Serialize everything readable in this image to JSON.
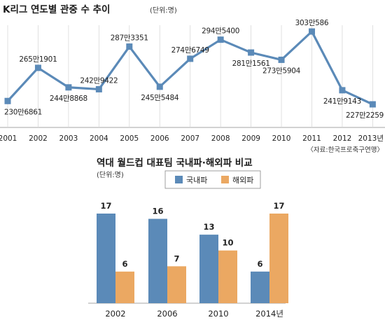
{
  "chart_data": [
    {
      "type": "line",
      "title": "K리그 연도별 관중 수 추이",
      "unit": "(단위:명)",
      "source": "〈자료:한국프로축구연맹〉",
      "x": [
        "2001",
        "2002",
        "2003",
        "2004",
        "2005",
        "2006",
        "2007",
        "2008",
        "2009",
        "2010",
        "2011",
        "2012",
        "2013년"
      ],
      "values": [
        2306861,
        2651901,
        2448868,
        2429422,
        2873351,
        2455484,
        2746749,
        2945400,
        2811561,
        2735904,
        3030586,
        2419143,
        2272259
      ],
      "labels": [
        "230만6861",
        "265만1901",
        "244만8868",
        "242만9422",
        "287만3351",
        "245만5484",
        "274만6749",
        "294만5400",
        "281만1561",
        "273만5904",
        "303만586",
        "241만9143",
        "227만2259"
      ],
      "color": "#5b8ab8"
    },
    {
      "type": "bar",
      "title": "역대 월드컵 대표팀 국내파·해외파 비교",
      "unit": "(단위:명)",
      "categories": [
        "2002",
        "2006",
        "2010",
        "2014년"
      ],
      "series": [
        {
          "name": "국내파",
          "values": [
            17,
            16,
            13,
            6
          ],
          "color": "#5b8ab8"
        },
        {
          "name": "해외파",
          "values": [
            6,
            7,
            10,
            17
          ],
          "color": "#eba862"
        }
      ],
      "ylim": [
        0,
        17
      ]
    }
  ]
}
